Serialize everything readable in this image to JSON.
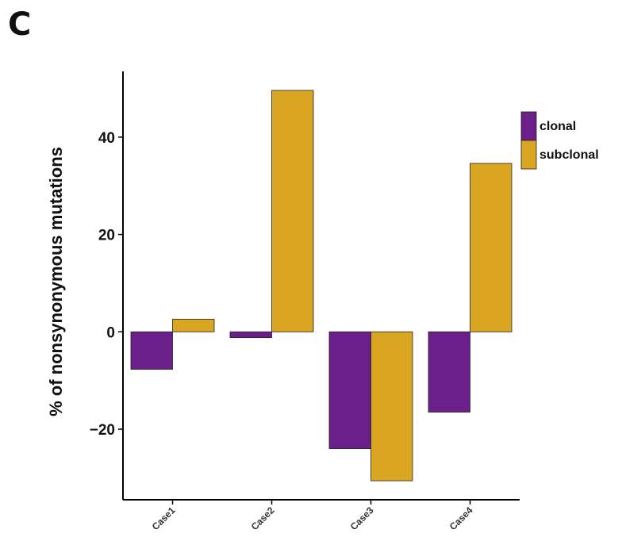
{
  "panel_label": "C",
  "chart_data": {
    "type": "bar",
    "title": "",
    "xlabel": "",
    "ylabel": "% of nonsynonymous mutations",
    "categories": [
      "Case1",
      "Case2",
      "Case3",
      "Case4"
    ],
    "series": [
      {
        "name": "clonal",
        "color": "#6A1F8A",
        "values": [
          -7.7,
          -1.2,
          -24.0,
          -16.5
        ]
      },
      {
        "name": "subclonal",
        "color": "#DAA520",
        "values": [
          2.6,
          49.6,
          -30.6,
          34.6
        ]
      }
    ],
    "ylim": [
      -34.5,
      53.5
    ],
    "yticks": [
      -20,
      0,
      20,
      40
    ],
    "grid": false,
    "legend": "top-right"
  }
}
